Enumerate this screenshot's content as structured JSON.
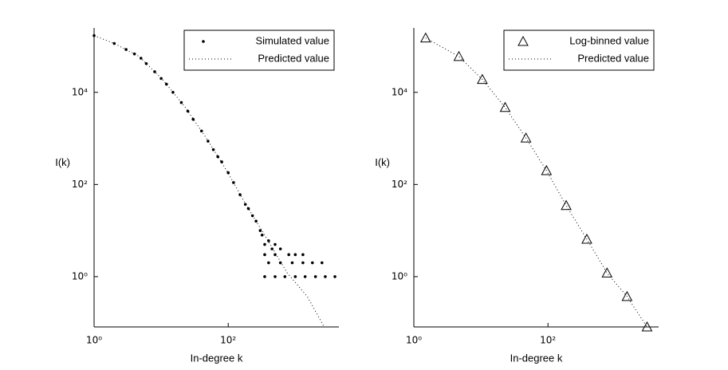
{
  "chart_data": [
    {
      "type": "scatter",
      "xlabel": "In-degree k",
      "ylabel": "I(k)",
      "xscale": "log",
      "yscale": "log",
      "xlim": [
        1,
        4467
      ],
      "ylim": [
        0.081,
        250000
      ],
      "xticks": [
        {
          "value": 1,
          "label": "10⁰"
        },
        {
          "value": 100,
          "label": "10²"
        }
      ],
      "yticks": [
        {
          "value": 1,
          "label": "10⁰"
        },
        {
          "value": 100,
          "label": "10²"
        },
        {
          "value": 10000,
          "label": "10⁴"
        }
      ],
      "legend": "upper right",
      "series": [
        {
          "name": "Simulated value",
          "color": "#000000",
          "marker": "dot",
          "x": [
            1,
            2,
            3,
            4,
            5,
            6,
            8,
            10,
            12,
            15,
            20,
            25,
            30,
            40,
            50,
            60,
            70,
            80,
            100,
            120,
            150,
            180,
            200,
            230,
            260,
            300,
            320,
            350,
            400,
            450,
            500,
            600,
            350,
            500,
            800,
            1000,
            1300,
            400,
            600,
            900,
            1300,
            1800,
            2500,
            350,
            500,
            700,
            1000,
            1400,
            2000,
            2800,
            3900
          ],
          "y": [
            170000,
            115000,
            85000,
            68000,
            55000,
            42000,
            28000,
            20000,
            15000,
            10000,
            6000,
            3900,
            2600,
            1450,
            870,
            570,
            400,
            310,
            180,
            110,
            60,
            37,
            30,
            21,
            16,
            10,
            8,
            5,
            6,
            4,
            5,
            4,
            3,
            3,
            3,
            3,
            3,
            2,
            2,
            2,
            2,
            2,
            2,
            1,
            1,
            1,
            1,
            1,
            1,
            1,
            1
          ]
        },
        {
          "name": "Predicted value",
          "color": "#000000",
          "line": "dotted",
          "x": [
            1,
            2,
            4.7,
            10.5,
            23,
            47,
            95,
            187,
            380,
            760,
            1510,
            2700
          ],
          "y": [
            170000,
            115000,
            60000,
            19000,
            4700,
            1020,
            200,
            35,
            6.5,
            1.2,
            0.37,
            0.081
          ]
        }
      ]
    },
    {
      "type": "scatter",
      "xlabel": "In-degree k",
      "ylabel": "I(k)",
      "xscale": "log",
      "yscale": "log",
      "xlim": [
        1,
        4467
      ],
      "ylim": [
        0.081,
        250000
      ],
      "xticks": [
        {
          "value": 1,
          "label": "10⁰"
        },
        {
          "value": 100,
          "label": "10²"
        }
      ],
      "yticks": [
        {
          "value": 1,
          "label": "10⁰"
        },
        {
          "value": 100,
          "label": "10²"
        },
        {
          "value": 10000,
          "label": "10⁴"
        }
      ],
      "legend": "upper right",
      "series": [
        {
          "name": "Log-binned value",
          "color": "#000000",
          "marker": "triangle",
          "x": [
            1.5,
            4.7,
            10.5,
            23,
            47,
            95,
            187,
            380,
            760,
            1510,
            3000
          ],
          "y": [
            151000,
            60000,
            19000,
            4700,
            1020,
            200,
            35,
            6.5,
            1.2,
            0.37,
            0.081
          ]
        },
        {
          "name": "Predicted value",
          "color": "#000000",
          "line": "dotted",
          "x": [
            1.5,
            4.7,
            10.5,
            23,
            47,
            95,
            187,
            380,
            760,
            1510,
            3000
          ],
          "y": [
            151000,
            60000,
            19000,
            4700,
            1020,
            200,
            35,
            6.5,
            1.2,
            0.37,
            0.081
          ]
        }
      ]
    }
  ]
}
